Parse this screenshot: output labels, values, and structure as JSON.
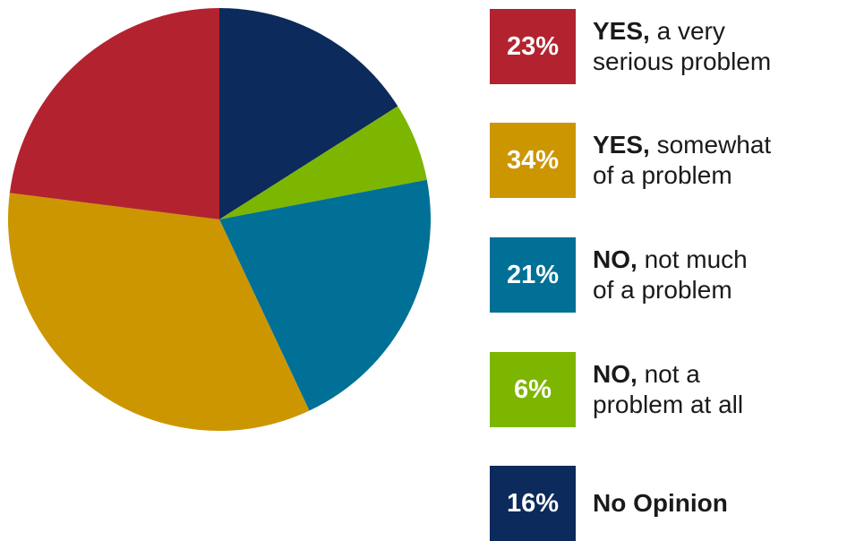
{
  "chart_data": {
    "type": "pie",
    "title": "",
    "slices": [
      {
        "value": 23,
        "label": "23%",
        "bold": "YES,",
        "line1": "a very",
        "line2": "serious problem",
        "color": "#b3232f"
      },
      {
        "value": 34,
        "label": "34%",
        "bold": "YES,",
        "line1": "somewhat",
        "line2": "of a problem",
        "color": "#cc9600"
      },
      {
        "value": 21,
        "label": "21%",
        "bold": "NO,",
        "line1": "not much",
        "line2": "of a problem",
        "color": "#007096"
      },
      {
        "value": 6,
        "label": "6%",
        "bold": "NO,",
        "line1": "not a",
        "line2": "problem at all",
        "color": "#7db600"
      },
      {
        "value": 16,
        "label": "16%",
        "bold": "No Opinion",
        "line1": "",
        "line2": "",
        "color": "#0c2a5b"
      }
    ],
    "pie_order": [
      4,
      3,
      2,
      1,
      0
    ],
    "legend_position": "right"
  }
}
